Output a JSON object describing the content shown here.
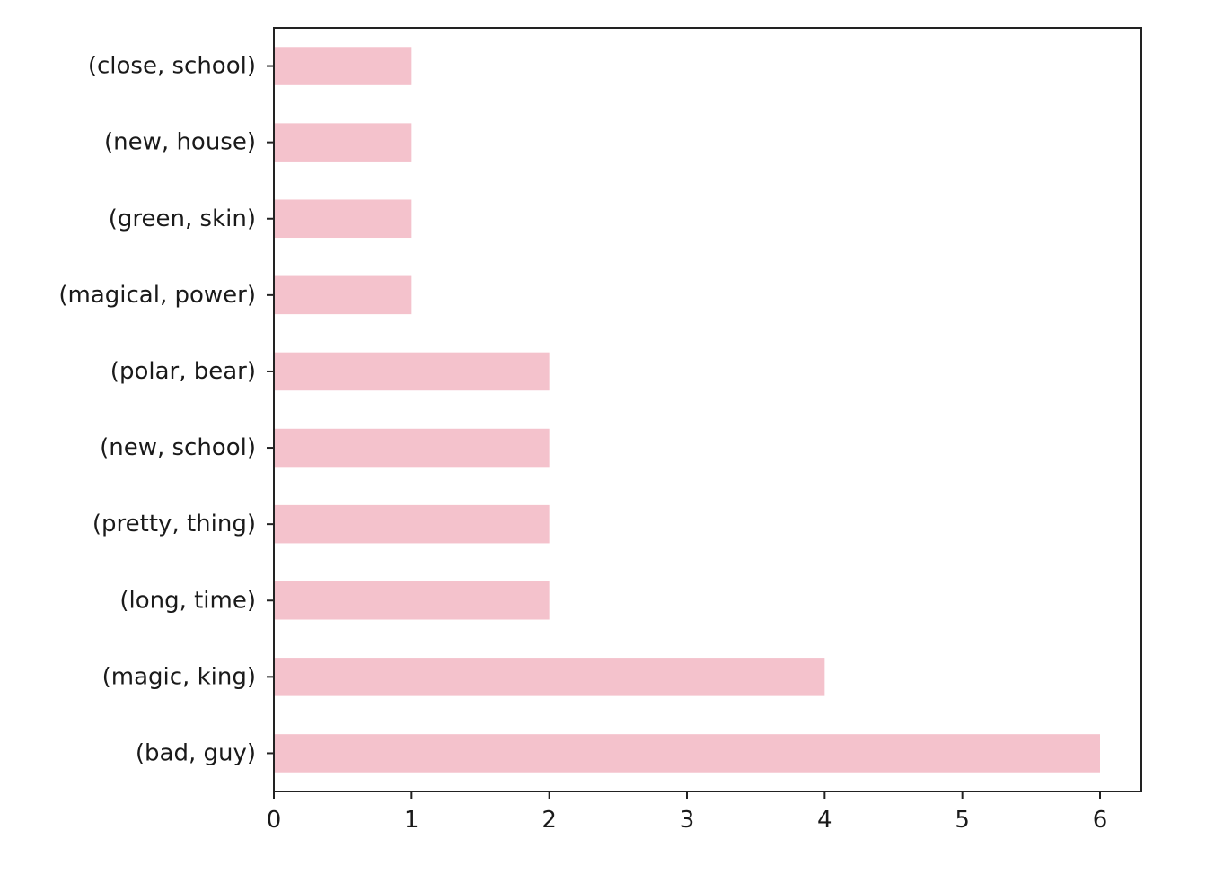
{
  "chart_data": {
    "type": "bar",
    "orientation": "horizontal",
    "categories": [
      "(close, school)",
      "(new, house)",
      "(green, skin)",
      "(magical, power)",
      "(polar, bear)",
      "(new, school)",
      "(pretty, thing)",
      "(long, time)",
      "(magic, king)",
      "(bad, guy)"
    ],
    "values": [
      1,
      1,
      1,
      1,
      2,
      2,
      2,
      2,
      4,
      6
    ],
    "xlim": [
      0,
      6.3
    ],
    "xticks": [
      0,
      1,
      2,
      3,
      4,
      5,
      6
    ],
    "title": "",
    "xlabel": "",
    "ylabel": "",
    "grid": false,
    "legend": "none",
    "bar_color": "#f4c2cc",
    "axis_color": "#222222"
  }
}
